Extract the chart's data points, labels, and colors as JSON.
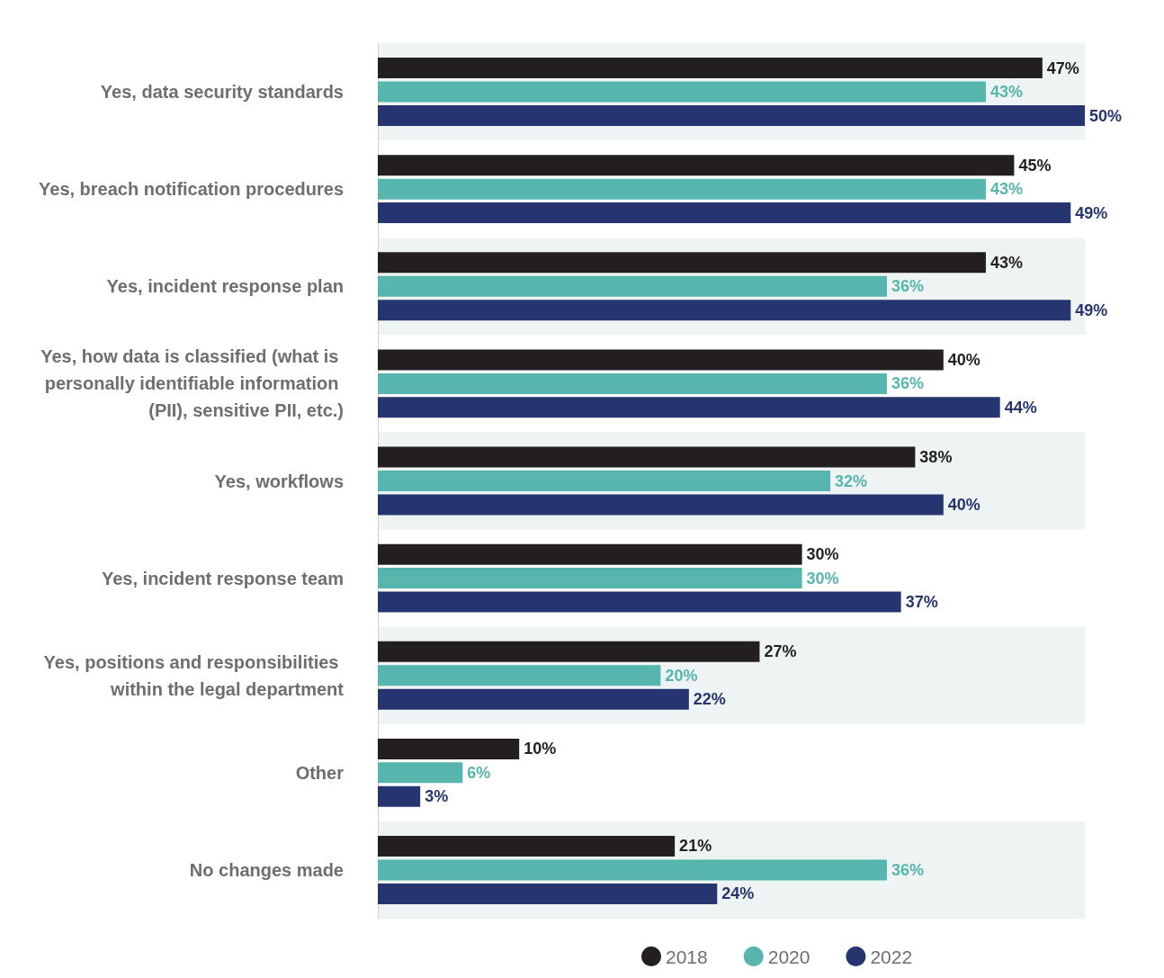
{
  "chart_data": {
    "type": "bar",
    "orientation": "horizontal",
    "categories": [
      "Yes, data security standards",
      "Yes, breach notification procedures",
      "Yes, incident response plan",
      "Yes, how data is classified (what is personally identifiable information (PII), sensitive PII, etc.)",
      "Yes, workflows",
      "Yes, incident response team",
      "Yes, positions and responsibilities within the legal department",
      "Other",
      "No changes made"
    ],
    "series": [
      {
        "name": "2018",
        "color": "#231f20",
        "values": [
          47,
          45,
          43,
          40,
          38,
          30,
          27,
          10,
          21
        ],
        "value_labels": [
          "47%",
          "45%",
          "43%",
          "40%",
          "38%",
          "30%",
          "27%",
          "10%",
          "21%"
        ]
      },
      {
        "name": "2020",
        "color": "#56b6ae",
        "values": [
          43,
          43,
          36,
          36,
          32,
          30,
          20,
          6,
          36
        ],
        "value_labels": [
          "43%",
          "43%",
          "36%",
          "36%",
          "32%",
          "30%",
          "20%",
          "6%",
          "36%"
        ]
      },
      {
        "name": "2022",
        "color": "#263570",
        "values": [
          50,
          49,
          49,
          44,
          40,
          37,
          22,
          3,
          24
        ],
        "value_labels": [
          "50%",
          "49%",
          "49%",
          "44%",
          "40%",
          "37%",
          "22%",
          "3%",
          "24%"
        ]
      }
    ],
    "legend": "bottom"
  }
}
